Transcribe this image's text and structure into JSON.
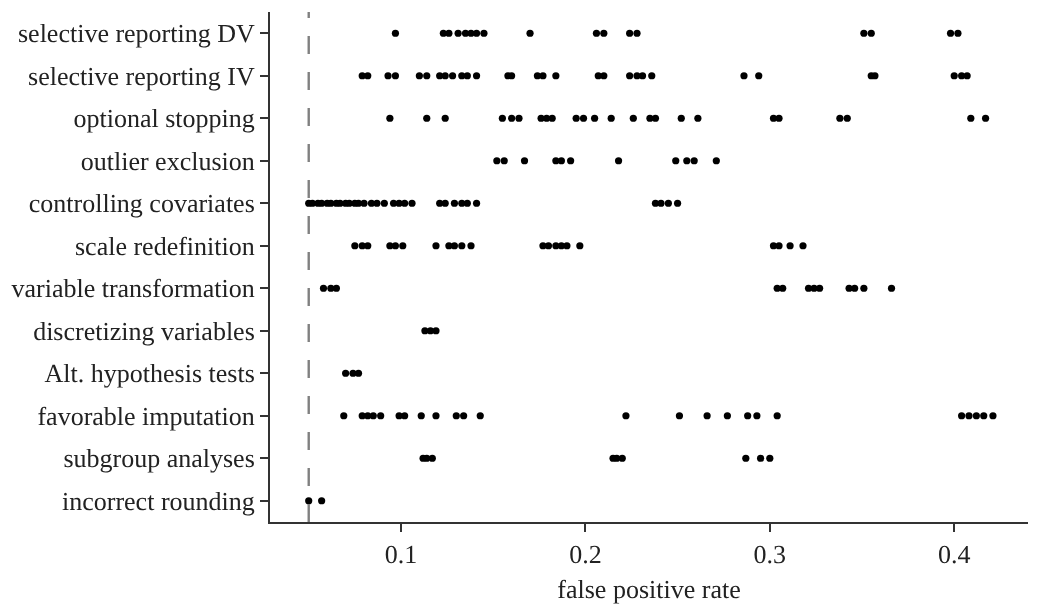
{
  "chart_data": {
    "type": "scatter",
    "orientation": "horizontal",
    "xlabel": "false positive rate",
    "categories": [
      "selective reporting DV",
      "selective reporting IV",
      "optional stopping",
      "outlier exclusion",
      "controlling covariates",
      "scale redefinition",
      "variable transformation",
      "discretizing variables",
      "Alt. hypothesis tests",
      "favorable imputation",
      "subgroup analyses",
      "incorrect rounding"
    ],
    "series": [
      {
        "color": "#000000",
        "values": [
          0.097,
          0.079,
          0.094,
          0.152,
          0.05,
          0.075,
          0.058,
          0.113,
          0.07,
          0.069,
          0.112,
          0.05
        ]
      },
      {
        "color": "#000000",
        "values": [
          0.123,
          0.082,
          0.114,
          0.156,
          0.052,
          0.079,
          0.062,
          0.116,
          0.074,
          0.079,
          0.114,
          0.057
        ]
      },
      {
        "color": "#000000",
        "values": [
          0.126,
          0.093,
          0.124,
          0.167,
          0.055,
          0.082,
          0.065,
          0.119,
          0.077,
          0.082,
          0.117,
          null
        ]
      },
      {
        "color": "#000000",
        "values": [
          0.131,
          0.097,
          0.155,
          0.184,
          0.057,
          0.094,
          0.304,
          null,
          null,
          0.085,
          0.215,
          null
        ]
      },
      {
        "color": "#000000",
        "values": [
          0.135,
          0.11,
          0.16,
          0.187,
          0.06,
          0.097,
          0.307,
          null,
          null,
          0.089,
          0.217,
          null
        ]
      },
      {
        "color": "#000000",
        "values": [
          0.138,
          0.114,
          0.164,
          0.192,
          0.062,
          0.101,
          0.321,
          null,
          null,
          0.099,
          0.22,
          null
        ]
      },
      {
        "color": "#000000",
        "values": [
          0.141,
          0.121,
          0.176,
          0.218,
          0.065,
          0.119,
          0.324,
          null,
          null,
          0.102,
          0.287,
          null
        ]
      },
      {
        "color": "#000000",
        "values": [
          0.145,
          0.124,
          0.179,
          0.249,
          0.067,
          0.126,
          0.327,
          null,
          null,
          0.111,
          0.295,
          null
        ]
      },
      {
        "color": "#000000",
        "values": [
          0.17,
          0.128,
          0.182,
          0.255,
          0.07,
          0.129,
          0.343,
          null,
          null,
          0.119,
          0.3,
          null
        ]
      },
      {
        "color": "#000000",
        "values": [
          0.206,
          0.133,
          0.195,
          0.259,
          0.072,
          0.133,
          0.346,
          null,
          null,
          0.13,
          null,
          null
        ]
      },
      {
        "color": "#000000",
        "values": [
          0.21,
          0.136,
          0.199,
          0.271,
          0.075,
          0.138,
          0.351,
          null,
          null,
          0.134,
          null,
          null
        ]
      },
      {
        "color": "#000000",
        "values": [
          0.224,
          0.141,
          0.205,
          null,
          0.077,
          0.177,
          0.366,
          null,
          null,
          0.143,
          null,
          null
        ]
      },
      {
        "color": "#000000",
        "values": [
          0.228,
          0.158,
          0.214,
          null,
          0.08,
          0.18,
          null,
          null,
          null,
          0.222,
          null,
          null
        ]
      },
      {
        "color": "#000000",
        "values": [
          0.351,
          0.16,
          0.226,
          null,
          0.084,
          0.184,
          null,
          null,
          null,
          0.251,
          null,
          null
        ]
      },
      {
        "color": "#000000",
        "values": [
          0.355,
          0.174,
          0.235,
          null,
          0.087,
          0.187,
          null,
          null,
          null,
          0.266,
          null,
          null
        ]
      },
      {
        "color": "#000000",
        "values": [
          0.398,
          0.177,
          0.238,
          null,
          0.091,
          0.19,
          null,
          null,
          null,
          0.277,
          null,
          null
        ]
      },
      {
        "color": "#000000",
        "values": [
          0.402,
          0.184,
          0.252,
          null,
          0.096,
          0.197,
          null,
          null,
          null,
          0.288,
          null,
          null
        ]
      },
      {
        "color": "#000000",
        "values": [
          null,
          0.207,
          0.261,
          null,
          0.099,
          0.302,
          null,
          null,
          null,
          0.293,
          null,
          null
        ]
      },
      {
        "color": "#000000",
        "values": [
          null,
          0.21,
          0.302,
          null,
          0.102,
          0.305,
          null,
          null,
          null,
          0.304,
          null,
          null
        ]
      },
      {
        "color": "#000000",
        "values": [
          null,
          0.224,
          0.305,
          null,
          0.106,
          0.311,
          null,
          null,
          null,
          0.404,
          null,
          null
        ]
      },
      {
        "color": "#000000",
        "values": [
          null,
          0.228,
          0.338,
          null,
          0.121,
          0.318,
          null,
          null,
          null,
          0.408,
          null,
          null
        ]
      },
      {
        "color": "#000000",
        "values": [
          null,
          0.231,
          0.342,
          null,
          0.124,
          null,
          null,
          null,
          null,
          0.412,
          null,
          null
        ]
      },
      {
        "color": "#000000",
        "values": [
          null,
          0.236,
          0.409,
          null,
          0.129,
          null,
          null,
          null,
          null,
          0.416,
          null,
          null
        ]
      },
      {
        "color": "#000000",
        "values": [
          null,
          0.286,
          0.417,
          null,
          0.133,
          null,
          null,
          null,
          null,
          0.421,
          null,
          null
        ]
      },
      {
        "color": "#000000",
        "values": [
          null,
          0.294,
          null,
          null,
          0.136,
          null,
          null,
          null,
          null,
          null,
          null,
          null
        ]
      },
      {
        "color": "#000000",
        "values": [
          null,
          0.355,
          null,
          null,
          0.141,
          null,
          null,
          null,
          null,
          null,
          null,
          null
        ]
      },
      {
        "color": "#000000",
        "values": [
          null,
          0.357,
          null,
          null,
          0.238,
          null,
          null,
          null,
          null,
          null,
          null,
          null
        ]
      },
      {
        "color": "#000000",
        "values": [
          null,
          0.4,
          null,
          null,
          0.241,
          null,
          null,
          null,
          null,
          null,
          null,
          null
        ]
      },
      {
        "color": "#000000",
        "values": [
          null,
          0.404,
          null,
          null,
          0.245,
          null,
          null,
          null,
          null,
          null,
          null,
          null
        ]
      },
      {
        "color": "#000000",
        "values": [
          null,
          0.407,
          null,
          null,
          0.25,
          null,
          null,
          null,
          null,
          null,
          null,
          null
        ]
      }
    ],
    "xlim": [
      0.029,
      0.44
    ],
    "xticks": [
      0.1,
      0.2,
      0.3,
      0.4
    ],
    "marker": "circle",
    "ref_lines": [
      {
        "axis": "x",
        "value": 0.05,
        "color": "#808080",
        "line_style": "dashed"
      }
    ]
  }
}
